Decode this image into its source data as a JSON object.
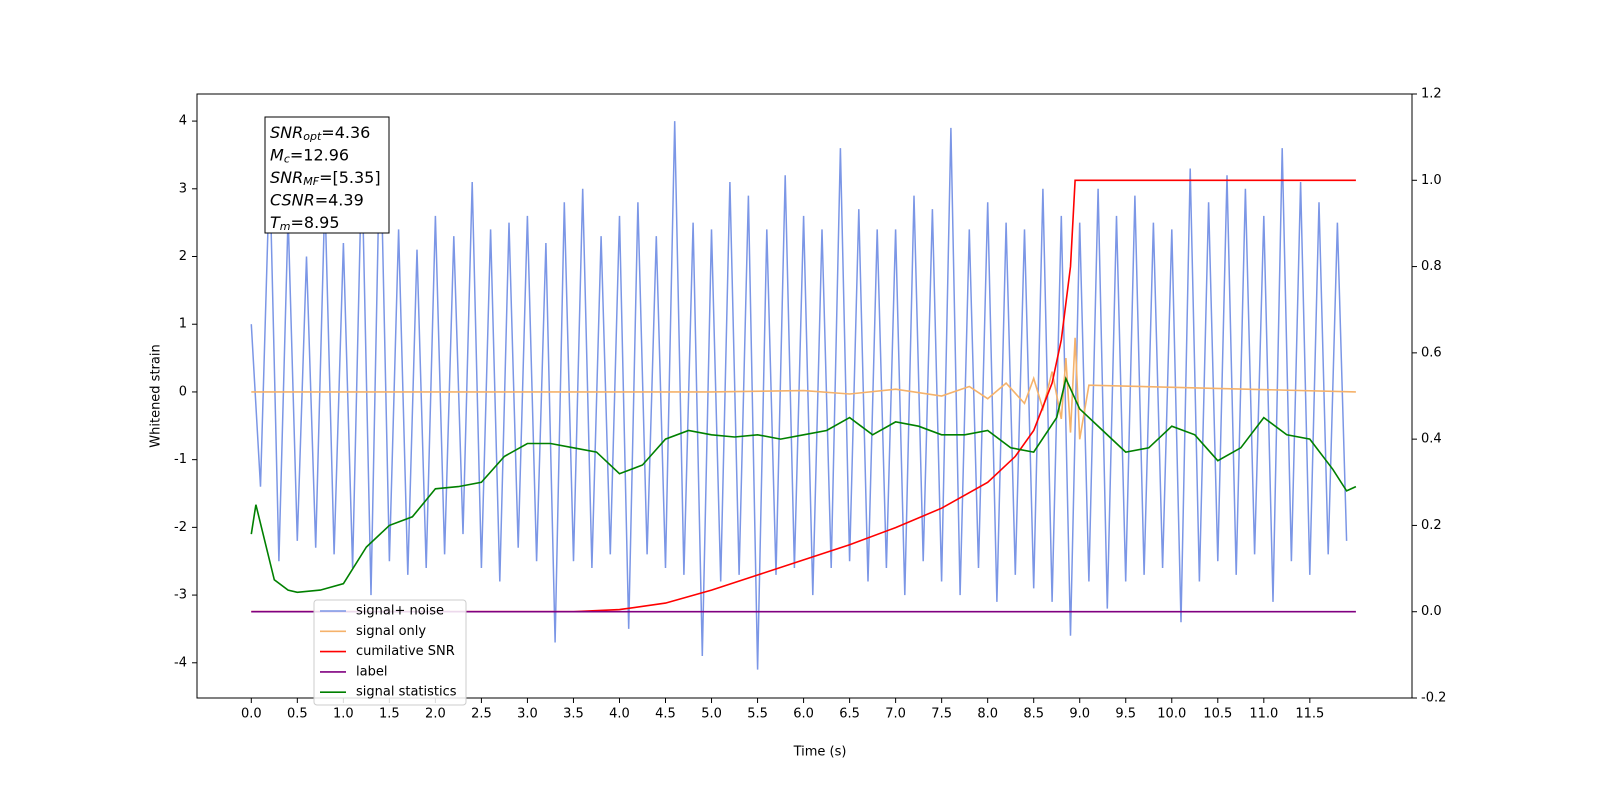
{
  "chart_data": {
    "type": "line",
    "xlabel": "Time (s)",
    "ylabel": "Whitened strain",
    "xlim": [
      -0.59,
      12.61
    ],
    "ylim": [
      -4.52,
      4.4
    ],
    "y2lim": [
      -0.2,
      1.2
    ],
    "xticks": [
      {
        "value": 0,
        "label": "0.0"
      },
      0.5,
      {
        "value": 1,
        "label": "1.0"
      },
      1.5,
      {
        "value": 2,
        "label": "2.0"
      },
      2.5,
      {
        "value": 3,
        "label": "3.0"
      },
      3.5,
      {
        "value": 4,
        "label": "4.0"
      },
      4.5,
      {
        "value": 5,
        "label": "5.0"
      },
      5.5,
      {
        "value": 6,
        "label": "6.0"
      },
      6.5,
      {
        "value": 7,
        "label": "7.0"
      },
      7.5,
      {
        "value": 8,
        "label": "8.0"
      },
      8.5,
      {
        "value": 9,
        "label": "9.0"
      },
      9.5,
      {
        "value": 10,
        "label": "10.0"
      },
      10.5,
      {
        "value": 11,
        "label": "11.0"
      },
      11.5
    ],
    "yticks": [
      -4,
      -3,
      -2,
      -1,
      0,
      1,
      2,
      3,
      4
    ],
    "y2ticks": [
      -0.2,
      {
        "value": 0,
        "label": "0.0"
      },
      0.2,
      0.4,
      0.6,
      0.8,
      {
        "value": 1,
        "label": "1.0"
      },
      1.2
    ],
    "annotation": [
      {
        "symbol": "SNR",
        "sub": "opt",
        "text": "=4.36"
      },
      {
        "symbol": "M",
        "sub": "c",
        "text": "=12.96"
      },
      {
        "symbol": "SNR",
        "sub": "MF",
        "text": "=[5.35]"
      },
      {
        "symbol": "CSNR",
        "text": "=4.39"
      },
      {
        "symbol": "T",
        "sub": "m",
        "text": "=8.95"
      }
    ],
    "series": [
      {
        "name": "signal+ noise",
        "color": "#7b96e6",
        "axis": "y",
        "x": [
          0.0,
          0.1,
          0.2,
          0.3,
          0.4,
          0.5,
          0.6,
          0.7,
          0.8,
          0.9,
          1.0,
          1.1,
          1.2,
          1.3,
          1.4,
          1.5,
          1.6,
          1.7,
          1.8,
          1.9,
          2.0,
          2.1,
          2.2,
          2.3,
          2.4,
          2.5,
          2.6,
          2.7,
          2.8,
          2.9,
          3.0,
          3.1,
          3.2,
          3.3,
          3.4,
          3.5,
          3.6,
          3.7,
          3.8,
          3.9,
          4.0,
          4.1,
          4.2,
          4.3,
          4.4,
          4.5,
          4.6,
          4.7,
          4.8,
          4.9,
          5.0,
          5.1,
          5.2,
          5.3,
          5.4,
          5.5,
          5.6,
          5.7,
          5.8,
          5.9,
          6.0,
          6.1,
          6.2,
          6.3,
          6.4,
          6.5,
          6.6,
          6.7,
          6.8,
          6.9,
          7.0,
          7.1,
          7.2,
          7.3,
          7.4,
          7.5,
          7.6,
          7.7,
          7.8,
          7.9,
          8.0,
          8.1,
          8.2,
          8.3,
          8.4,
          8.5,
          8.6,
          8.7,
          8.8,
          8.9,
          9.0,
          9.1,
          9.2,
          9.3,
          9.4,
          9.5,
          9.6,
          9.7,
          9.8,
          9.9,
          10.0,
          10.1,
          10.2,
          10.3,
          10.4,
          10.5,
          10.6,
          10.7,
          10.8,
          10.9,
          11.0,
          11.1,
          11.2,
          11.3,
          11.4,
          11.5,
          11.6,
          11.7,
          11.8,
          11.9
        ],
        "values": [
          1.0,
          -1.4,
          3.3,
          -2.5,
          2.6,
          -2.2,
          2.0,
          -2.3,
          2.9,
          -2.4,
          2.2,
          -2.6,
          3.4,
          -3.0,
          3.9,
          -2.5,
          2.4,
          -2.7,
          2.1,
          -2.6,
          2.6,
          -2.4,
          2.3,
          -2.1,
          3.1,
          -2.6,
          2.4,
          -2.8,
          2.5,
          -2.3,
          2.6,
          -2.5,
          2.2,
          -3.7,
          2.8,
          -2.5,
          3.0,
          -2.6,
          2.3,
          -2.4,
          2.6,
          -3.5,
          2.8,
          -2.4,
          2.3,
          -2.6,
          4.0,
          -2.7,
          2.5,
          -3.9,
          2.4,
          -2.8,
          3.1,
          -2.7,
          2.9,
          -4.1,
          2.4,
          -2.7,
          3.2,
          -2.6,
          2.6,
          -3.0,
          2.4,
          -2.6,
          3.6,
          -2.5,
          2.7,
          -2.8,
          2.4,
          -2.6,
          2.4,
          -3.0,
          2.9,
          -2.5,
          2.7,
          -2.8,
          3.9,
          -3.0,
          2.4,
          -2.6,
          2.8,
          -3.1,
          2.5,
          -2.7,
          2.4,
          -2.9,
          3.0,
          -3.1,
          2.6,
          -3.6,
          2.5,
          -2.8,
          3.0,
          -3.2,
          2.6,
          -2.8,
          2.9,
          -2.7,
          2.5,
          -2.6,
          2.4,
          -3.4,
          3.3,
          -2.8,
          2.8,
          -2.5,
          3.2,
          -2.7,
          3.0,
          -2.4,
          2.6,
          -3.1,
          3.6,
          -2.5,
          3.1,
          -2.7,
          2.8,
          -2.4,
          2.5,
          -2.2
        ]
      },
      {
        "name": "signal only",
        "color": "#f5b26b",
        "axis": "y",
        "x": [
          0,
          1,
          2,
          3,
          4,
          5,
          6,
          6.5,
          7,
          7.5,
          7.8,
          8.0,
          8.2,
          8.4,
          8.5,
          8.6,
          8.7,
          8.8,
          8.85,
          8.9,
          8.95,
          9.0,
          9.1,
          12
        ],
        "values": [
          0,
          0,
          0,
          0,
          0,
          0,
          0.02,
          -0.03,
          0.04,
          -0.06,
          0.08,
          -0.1,
          0.13,
          -0.17,
          0.2,
          -0.25,
          0.3,
          -0.4,
          0.5,
          -0.6,
          0.8,
          -0.7,
          0.1,
          0
        ]
      },
      {
        "name": "cumilative SNR",
        "color": "#ff0000",
        "axis": "y2",
        "x": [
          0,
          3.5,
          4.0,
          4.5,
          5.0,
          5.5,
          6.0,
          6.5,
          7.0,
          7.5,
          8.0,
          8.3,
          8.5,
          8.7,
          8.8,
          8.9,
          8.95,
          9.0,
          12.0
        ],
        "values": [
          0,
          0,
          0.005,
          0.02,
          0.05,
          0.085,
          0.12,
          0.155,
          0.195,
          0.24,
          0.3,
          0.36,
          0.42,
          0.53,
          0.63,
          0.8,
          1.0,
          1.0,
          1.0
        ]
      },
      {
        "name": "label",
        "color": "#800080",
        "axis": "y2",
        "x": [
          0,
          12
        ],
        "values": [
          0,
          0
        ]
      },
      {
        "name": "signal statistics",
        "color": "#008000",
        "axis": "y2",
        "x": [
          0,
          0.05,
          0.25,
          0.4,
          0.5,
          0.75,
          1.0,
          1.25,
          1.5,
          1.75,
          2.0,
          2.25,
          2.5,
          2.75,
          3.0,
          3.25,
          3.5,
          3.75,
          4.0,
          4.25,
          4.5,
          4.75,
          5.0,
          5.25,
          5.5,
          5.75,
          6.0,
          6.25,
          6.5,
          6.75,
          7.0,
          7.25,
          7.5,
          7.75,
          8.0,
          8.25,
          8.5,
          8.75,
          8.85,
          9.0,
          9.25,
          9.5,
          9.75,
          10.0,
          10.25,
          10.5,
          10.75,
          11.0,
          11.25,
          11.5,
          11.75,
          11.9,
          12.0
        ],
        "values": [
          0.18,
          0.248,
          0.074,
          0.05,
          0.045,
          0.05,
          0.065,
          0.15,
          0.2,
          0.22,
          0.285,
          0.29,
          0.3,
          0.36,
          0.39,
          0.39,
          0.38,
          0.37,
          0.32,
          0.34,
          0.4,
          0.42,
          0.41,
          0.405,
          0.41,
          0.4,
          0.41,
          0.42,
          0.45,
          0.41,
          0.44,
          0.43,
          0.41,
          0.41,
          0.42,
          0.38,
          0.37,
          0.45,
          0.54,
          0.47,
          0.42,
          0.37,
          0.38,
          0.43,
          0.41,
          0.35,
          0.38,
          0.45,
          0.41,
          0.4,
          0.33,
          0.28,
          0.29
        ]
      }
    ]
  }
}
